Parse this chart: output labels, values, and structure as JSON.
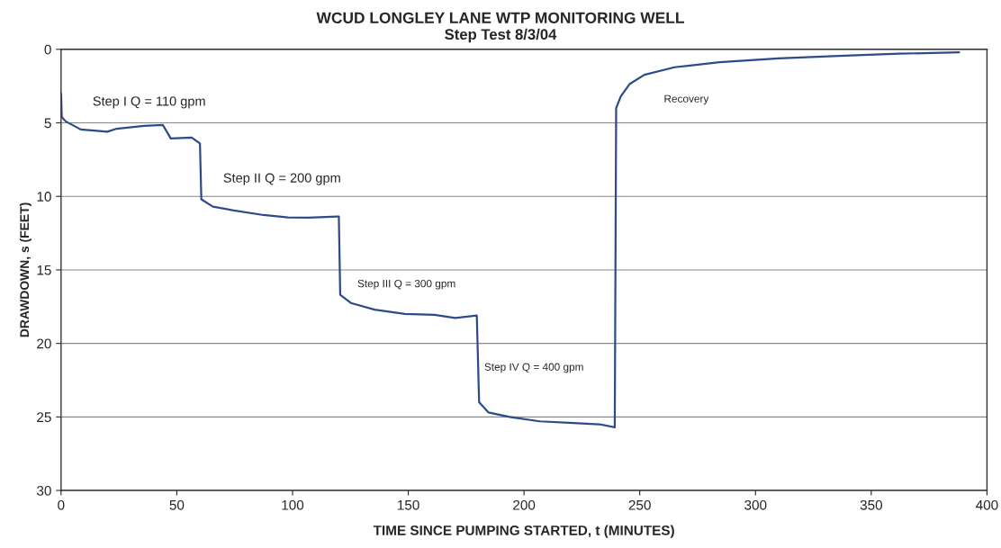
{
  "chart_data": {
    "type": "line",
    "title": "WCUD LONGLEY LANE WTP MONITORING WELL",
    "subtitle": "Step Test 8/3/04",
    "xlabel": "TIME SINCE PUMPING STARTED, t (MINUTES)",
    "ylabel": "DRAWDOWN, s (FEET)",
    "x": [
      0,
      0.3,
      2,
      8.5,
      20,
      24,
      35.8,
      44,
      47.4,
      56.4,
      60,
      60.6,
      65.6,
      74.6,
      87.5,
      98,
      107,
      119.3,
      120,
      120.6,
      125.2,
      135.5,
      148.5,
      161.3,
      170.3,
      179.6,
      180.6,
      184.7,
      193.8,
      206.8,
      219.6,
      232.7,
      239.2,
      239.8,
      241.8,
      245.7,
      252,
      265,
      284.5,
      310,
      336,
      362,
      388
    ],
    "series": [
      {
        "color": "#2e4a8b",
        "values": [
          3.0,
          4.6,
          4.9,
          5.45,
          5.6,
          5.4,
          5.2,
          5.15,
          6.06,
          6.0,
          6.4,
          10.2,
          10.7,
          10.96,
          11.27,
          11.43,
          11.45,
          11.37,
          11.37,
          16.7,
          17.25,
          17.7,
          18.0,
          18.06,
          18.27,
          18.1,
          24.0,
          24.7,
          25.0,
          25.3,
          25.4,
          25.5,
          25.7,
          4.0,
          3.2,
          2.35,
          1.73,
          1.22,
          0.88,
          0.61,
          0.45,
          0.3,
          0.2
        ]
      }
    ],
    "xlim": [
      0,
      400
    ],
    "xticks": [
      0,
      50,
      100,
      150,
      200,
      250,
      300,
      350,
      400
    ],
    "ylim": [
      30,
      0
    ],
    "yticks": [
      0,
      5,
      10,
      15,
      20,
      25,
      30
    ],
    "grid": "y",
    "marker": "none",
    "line_style": "solid",
    "annotations": [
      "Step I Q = 110 gpm",
      "Step II Q = 200 gpm",
      "Step III Q = 300 gpm",
      "Step IV Q = 400 gpm",
      "Recovery"
    ]
  }
}
